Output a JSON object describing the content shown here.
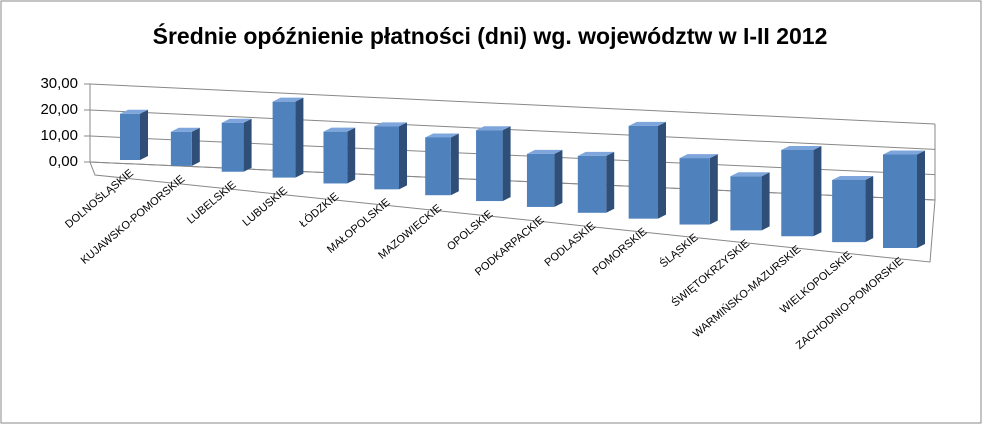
{
  "chart_data": {
    "type": "bar3d",
    "title": "Średnie opóźnienie płatności (dni) wg. województw w I-II 2012",
    "categories": [
      "DOLNOŚLĄSKIE",
      "KUJAWSKO-POMORSKIE",
      "LUBELSKIE",
      "LUBUSKIE",
      "ŁÓDZKIE",
      "MAŁOPOLSKIE",
      "MAZOWIECKIE",
      "OPOLSKIE",
      "PODKARPACKIE",
      "PODLASKIE",
      "POMORSKIE",
      "ŚLĄSKIE",
      "ŚWIĘTOKRZYSKIE",
      "WARMIŃSKO-MAZURSKIE",
      "WIELKOPOLSKIE",
      "ZACHODNIO-POMORSKIE"
    ],
    "values": [
      16.5,
      12,
      17,
      26,
      17.5,
      21,
      19,
      23,
      17,
      18,
      29,
      20.5,
      16.5,
      26,
      18.5,
      27.5
    ],
    "color": "#4f81bd",
    "ylim": [
      0,
      30
    ],
    "yticks": [
      {
        "value": 0,
        "label": "0,00"
      },
      {
        "value": 10,
        "label": "10,00"
      },
      {
        "value": 20,
        "label": "20,00"
      },
      {
        "value": 30,
        "label": "30,00"
      }
    ],
    "grid": true
  }
}
